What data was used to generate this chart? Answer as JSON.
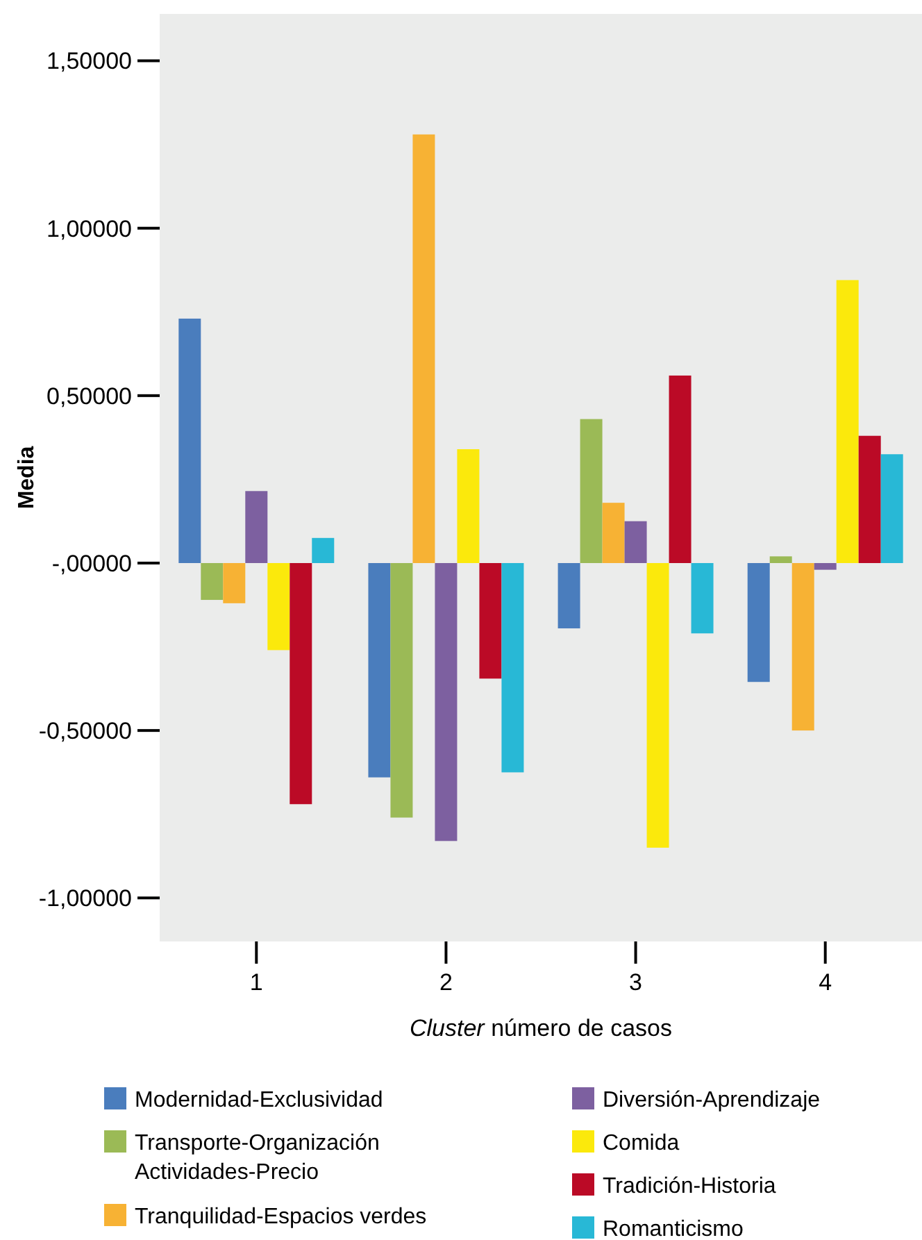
{
  "chart_data": {
    "type": "bar",
    "xlabel": "Cluster número de casos",
    "ylabel": "Media",
    "categories": [
      "1",
      "2",
      "3",
      "4"
    ],
    "ylim": [
      -1.13,
      1.64
    ],
    "yticks": [
      {
        "value": -1,
        "label": "-1,00000"
      },
      {
        "value": -0.5,
        "label": "-0,50000"
      },
      {
        "value": 0,
        "label": "-,00000"
      },
      {
        "value": 0.5,
        "label": "0,50000"
      },
      {
        "value": 1,
        "label": "1,00000"
      },
      {
        "value": 1.5,
        "label": "1,50000"
      }
    ],
    "grid": false,
    "legend": "bottom",
    "series": [
      {
        "name": "Modernidad-Exclusividad",
        "color": "#4a7dbd",
        "values": [
          0.73,
          -0.64,
          -0.195,
          -0.355
        ]
      },
      {
        "name": "Transporte-Organización\nActividades-Precio",
        "color": "#9bba56",
        "values": [
          -0.11,
          -0.76,
          0.43,
          0.02
        ]
      },
      {
        "name": "Tranquilidad-Espacios verdes",
        "color": "#f7b234",
        "values": [
          -0.12,
          1.28,
          0.18,
          -0.5
        ]
      },
      {
        "name": "Diversión-Aprendizaje",
        "color": "#7d60a0",
        "values": [
          0.215,
          -0.83,
          0.125,
          -0.02
        ]
      },
      {
        "name": "Comida",
        "color": "#fbe90c",
        "values": [
          -0.26,
          0.34,
          -0.85,
          0.845
        ]
      },
      {
        "name": "Tradición-Historia",
        "color": "#bb0a26",
        "values": [
          -0.72,
          -0.345,
          0.56,
          0.38
        ]
      },
      {
        "name": "Romanticismo",
        "color": "#28b8d6",
        "values": [
          0.075,
          -0.625,
          -0.21,
          0.325
        ]
      }
    ]
  }
}
